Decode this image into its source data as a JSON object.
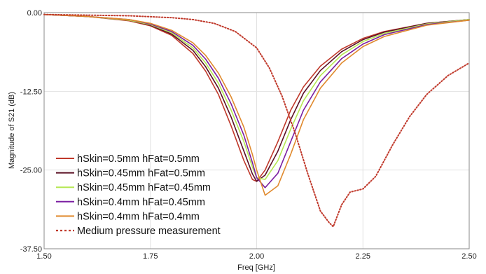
{
  "chart_data": {
    "type": "line",
    "xlabel": "Freq [GHz]",
    "ylabel": "Magnitude of S21 (dB)",
    "xlim": [
      1.5,
      2.5
    ],
    "ylim": [
      -37.5,
      0
    ],
    "x_ticks": [
      "1.50",
      "1.75",
      "2.00",
      "2.25",
      "2.50"
    ],
    "y_ticks": [
      "0.00",
      "-12.50",
      "-25.00",
      "-37.50"
    ],
    "grid": true,
    "legend_position": "bottom-left",
    "series": [
      {
        "name": "hSkin=0.5mm hFat=0.5mm",
        "color": "#c0392b",
        "style": "solid",
        "x": [
          1.5,
          1.6,
          1.7,
          1.75,
          1.8,
          1.85,
          1.88,
          1.91,
          1.94,
          1.97,
          1.99,
          2.0,
          2.02,
          2.05,
          2.08,
          2.11,
          2.15,
          2.2,
          2.25,
          2.3,
          2.4,
          2.5
        ],
        "y": [
          -0.3,
          -0.6,
          -1.3,
          -2.1,
          -3.6,
          -6.5,
          -9.3,
          -13.0,
          -18.0,
          -23.5,
          -26.5,
          -26.8,
          -25.0,
          -20.5,
          -15.5,
          -11.8,
          -8.5,
          -5.8,
          -4.1,
          -3.0,
          -1.7,
          -1.1
        ]
      },
      {
        "name": "hSkin=0.45mm hFat=0.5mm",
        "color": "#5a1025",
        "style": "solid",
        "x": [
          1.5,
          1.6,
          1.7,
          1.75,
          1.8,
          1.85,
          1.88,
          1.91,
          1.94,
          1.97,
          1.99,
          2.0,
          2.02,
          2.05,
          2.08,
          2.11,
          2.15,
          2.2,
          2.25,
          2.3,
          2.4,
          2.5
        ],
        "y": [
          -0.3,
          -0.6,
          -1.2,
          -2.0,
          -3.4,
          -6.0,
          -8.6,
          -12.0,
          -16.6,
          -22.0,
          -25.6,
          -26.8,
          -25.8,
          -22.0,
          -17.0,
          -12.8,
          -9.2,
          -6.2,
          -4.3,
          -3.1,
          -1.7,
          -1.1
        ]
      },
      {
        "name": "hSkin=0.45mm hFat=0.45mm",
        "color": "#b5e853",
        "style": "solid",
        "x": [
          1.5,
          1.6,
          1.7,
          1.75,
          1.8,
          1.85,
          1.88,
          1.91,
          1.94,
          1.97,
          1.99,
          2.0,
          2.02,
          2.05,
          2.08,
          2.11,
          2.15,
          2.2,
          2.25,
          2.3,
          2.4,
          2.5
        ],
        "y": [
          -0.3,
          -0.6,
          -1.2,
          -1.9,
          -3.2,
          -5.6,
          -8.0,
          -11.2,
          -15.5,
          -20.5,
          -24.5,
          -26.2,
          -26.5,
          -23.5,
          -18.5,
          -14.0,
          -10.0,
          -6.7,
          -4.6,
          -3.3,
          -1.8,
          -1.1
        ]
      },
      {
        "name": "hSkin=0.4mm hFat=0.45mm",
        "color": "#7b1fa2",
        "style": "solid",
        "x": [
          1.5,
          1.6,
          1.7,
          1.75,
          1.8,
          1.85,
          1.88,
          1.91,
          1.94,
          1.97,
          1.99,
          2.0,
          2.02,
          2.05,
          2.08,
          2.11,
          2.15,
          2.2,
          2.25,
          2.3,
          2.4,
          2.5
        ],
        "y": [
          -0.3,
          -0.6,
          -1.1,
          -1.8,
          -3.0,
          -5.2,
          -7.4,
          -10.4,
          -14.5,
          -19.5,
          -23.8,
          -26.2,
          -27.8,
          -25.5,
          -20.5,
          -15.5,
          -11.0,
          -7.3,
          -5.0,
          -3.5,
          -1.9,
          -1.2
        ]
      },
      {
        "name": "hSkin=0.4mm hFat=0.4mm",
        "color": "#e08a2e",
        "style": "solid",
        "x": [
          1.5,
          1.6,
          1.7,
          1.75,
          1.8,
          1.85,
          1.88,
          1.91,
          1.94,
          1.97,
          1.99,
          2.0,
          2.02,
          2.05,
          2.08,
          2.11,
          2.15,
          2.2,
          2.25,
          2.3,
          2.4,
          2.5
        ],
        "y": [
          -0.3,
          -0.6,
          -1.1,
          -1.7,
          -2.8,
          -4.8,
          -6.8,
          -9.6,
          -13.4,
          -18.2,
          -22.5,
          -25.0,
          -29.0,
          -27.5,
          -22.5,
          -17.0,
          -12.0,
          -8.0,
          -5.4,
          -3.8,
          -2.0,
          -1.2
        ]
      },
      {
        "name": "Medium pressure measurement",
        "color": "#c0392b",
        "style": "dotted",
        "x": [
          1.5,
          1.6,
          1.7,
          1.8,
          1.85,
          1.9,
          1.95,
          2.0,
          2.03,
          2.06,
          2.09,
          2.12,
          2.15,
          2.17,
          2.18,
          2.2,
          2.22,
          2.25,
          2.28,
          2.32,
          2.36,
          2.4,
          2.45,
          2.5
        ],
        "y": [
          -0.3,
          -0.4,
          -0.5,
          -0.8,
          -1.1,
          -1.7,
          -3.0,
          -5.6,
          -8.8,
          -13.3,
          -19.0,
          -25.5,
          -31.5,
          -33.3,
          -34.0,
          -30.5,
          -28.5,
          -28.0,
          -26.0,
          -21.0,
          -16.5,
          -13.0,
          -10.0,
          -8.0
        ]
      }
    ]
  }
}
